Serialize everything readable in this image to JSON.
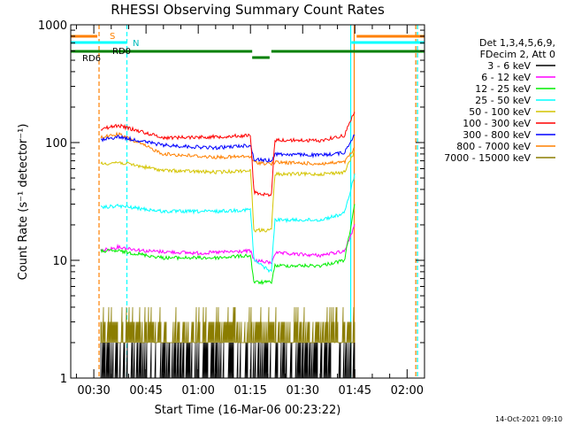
{
  "chart_data": {
    "type": "line",
    "title": "RHESSI Observing Summary Count Rates",
    "xlabel": "Start Time (16-Mar-06 00:23:22)",
    "ylabel": "Count Rate (s⁻¹ detector⁻¹)",
    "yscale": "log",
    "ylim": [
      1,
      1000
    ],
    "xlim_minutes": [
      23.37,
      125
    ],
    "x_ticks": [
      {
        "minute": 30,
        "label": "00:30"
      },
      {
        "minute": 45,
        "label": "00:45"
      },
      {
        "minute": 60,
        "label": "01:00"
      },
      {
        "minute": 75,
        "label": "01:15"
      },
      {
        "minute": 90,
        "label": "01:30"
      },
      {
        "minute": 105,
        "label": "01:45"
      },
      {
        "minute": 120,
        "label": "02:00"
      }
    ],
    "y_ticks": [
      {
        "value": 1,
        "label": "1"
      },
      {
        "value": 10,
        "label": "10"
      },
      {
        "value": 100,
        "label": "100"
      },
      {
        "value": 1000,
        "label": "1000"
      }
    ],
    "legend": {
      "header": [
        "Det 1,3,4,5,6,9,",
        "FDecim 2, Att 0"
      ],
      "placement": "right"
    },
    "series": [
      {
        "name": "3 - 6 keV",
        "color": "#000000",
        "values": [
          [
            32,
            2
          ],
          [
            40,
            2
          ],
          [
            50,
            2
          ],
          [
            60,
            2
          ],
          [
            70,
            2
          ],
          [
            80,
            2
          ],
          [
            90,
            2
          ],
          [
            100,
            2
          ],
          [
            103,
            3
          ],
          [
            105,
            8
          ]
        ]
      },
      {
        "name": "6 - 12 keV",
        "color": "#ff00ff",
        "values": [
          [
            32,
            12
          ],
          [
            37,
            13
          ],
          [
            45,
            12
          ],
          [
            60,
            11.5
          ],
          [
            75,
            12
          ],
          [
            76,
            10
          ],
          [
            81,
            9.5
          ],
          [
            82,
            11.5
          ],
          [
            95,
            11
          ],
          [
            102,
            12
          ],
          [
            105,
            20
          ]
        ]
      },
      {
        "name": "12 - 25 keV",
        "color": "#00ee00",
        "values": [
          [
            32,
            12
          ],
          [
            37,
            12
          ],
          [
            50,
            10.5
          ],
          [
            65,
            10.5
          ],
          [
            75,
            11
          ],
          [
            76,
            6.5
          ],
          [
            81,
            6.5
          ],
          [
            82,
            9
          ],
          [
            95,
            9
          ],
          [
            102,
            10
          ],
          [
            105,
            30
          ]
        ]
      },
      {
        "name": "25 - 50 keV",
        "color": "#00ffff",
        "values": [
          [
            32,
            28
          ],
          [
            37,
            29
          ],
          [
            50,
            26
          ],
          [
            65,
            26
          ],
          [
            75,
            27
          ],
          [
            76,
            10
          ],
          [
            81,
            8
          ],
          [
            82,
            22
          ],
          [
            95,
            22
          ],
          [
            102,
            25
          ],
          [
            105,
            55
          ]
        ]
      },
      {
        "name": "50 - 100 keV",
        "color": "#d4c400",
        "values": [
          [
            32,
            66
          ],
          [
            37,
            68
          ],
          [
            50,
            58
          ],
          [
            65,
            56
          ],
          [
            75,
            58
          ],
          [
            76,
            18
          ],
          [
            81,
            18
          ],
          [
            82,
            54
          ],
          [
            95,
            54
          ],
          [
            102,
            56
          ],
          [
            105,
            85
          ]
        ]
      },
      {
        "name": "100 - 300 keV",
        "color": "#ff0000",
        "values": [
          [
            32,
            130
          ],
          [
            37,
            140
          ],
          [
            50,
            110
          ],
          [
            65,
            112
          ],
          [
            75,
            115
          ],
          [
            76,
            38
          ],
          [
            81,
            35
          ],
          [
            82,
            105
          ],
          [
            95,
            104
          ],
          [
            102,
            115
          ],
          [
            105,
            190
          ]
        ]
      },
      {
        "name": "300 - 800 keV",
        "color": "#0000ff",
        "values": [
          [
            32,
            105
          ],
          [
            37,
            112
          ],
          [
            50,
            95
          ],
          [
            65,
            90
          ],
          [
            75,
            95
          ],
          [
            76,
            72
          ],
          [
            81,
            70
          ],
          [
            82,
            80
          ],
          [
            95,
            78
          ],
          [
            102,
            82
          ],
          [
            105,
            120
          ]
        ]
      },
      {
        "name": "800 - 7000 keV",
        "color": "#ff8000",
        "values": [
          [
            32,
            110
          ],
          [
            37,
            118
          ],
          [
            50,
            80
          ],
          [
            65,
            75
          ],
          [
            75,
            76
          ],
          [
            76,
            68
          ],
          [
            81,
            66
          ],
          [
            82,
            68
          ],
          [
            95,
            66
          ],
          [
            102,
            68
          ],
          [
            105,
            90
          ]
        ]
      },
      {
        "name": "7000 - 15000 keV",
        "color": "#8b7d00",
        "values": [
          [
            32,
            4
          ],
          [
            37,
            3.5
          ],
          [
            50,
            3
          ],
          [
            65,
            3
          ],
          [
            75,
            3
          ],
          [
            80,
            3
          ],
          [
            90,
            3
          ],
          [
            100,
            3
          ],
          [
            103,
            3.5
          ],
          [
            105,
            6
          ]
        ]
      }
    ],
    "vertical_markers": [
      {
        "minute": 31.5,
        "color": "#ff8000",
        "style": "dashed",
        "label": "S"
      },
      {
        "minute": 39.5,
        "color": "#00ffff",
        "style": "dashed",
        "label": "N"
      },
      {
        "minute": 104.8,
        "color": "#ff8000",
        "style": "solid",
        "label": ""
      },
      {
        "minute": 103.8,
        "color": "#00ffff",
        "style": "solid",
        "label": ""
      },
      {
        "minute": 122.5,
        "color": "#ff8000",
        "style": "dashed",
        "label": ""
      },
      {
        "minute": 123.0,
        "color": "#00ffff",
        "style": "dashed",
        "label": ""
      }
    ],
    "top_bars": [
      {
        "label": "S",
        "color": "#ff8000"
      },
      {
        "label": "N",
        "color": "#00ffff"
      },
      {
        "label": "RD0",
        "color": "#008000"
      },
      {
        "label": "RD6",
        "color": "#008000"
      }
    ]
  },
  "footer": {
    "timestamp": "14-Oct-2021 09:10"
  }
}
